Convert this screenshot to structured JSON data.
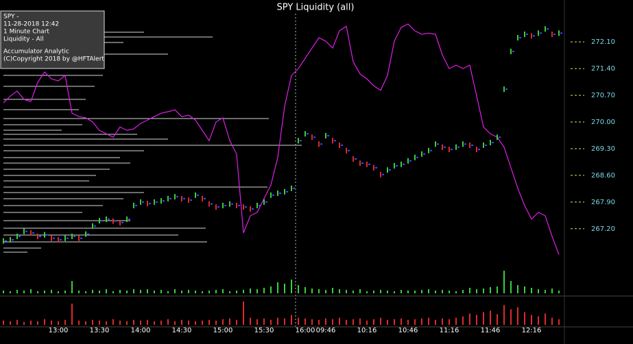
{
  "chart_data": {
    "type": "price-liquidity",
    "title": "SPY Liquidity (all)",
    "annotations": [
      "SPY -",
      "11-28-2018  12:42",
      "1 Minute Chart",
      "Liquidity - All",
      "Accumulator Analytic",
      "(C)Copyright 2018 by @HFTAlert"
    ],
    "categories": [
      null,
      null,
      null,
      null,
      null,
      null,
      null,
      null,
      "13:00",
      null,
      null,
      null,
      null,
      null,
      "13:30",
      null,
      null,
      null,
      null,
      null,
      "14:00",
      null,
      null,
      null,
      null,
      null,
      "14:30",
      null,
      null,
      null,
      null,
      null,
      "15:00",
      null,
      null,
      null,
      null,
      null,
      "15:30",
      null,
      null,
      null,
      null,
      null,
      "16:00",
      null,
      null,
      "09:46",
      null,
      null,
      null,
      null,
      null,
      "10:16",
      null,
      null,
      null,
      null,
      null,
      "10:46",
      null,
      null,
      null,
      null,
      null,
      "11:16",
      null,
      null,
      null,
      null,
      null,
      "11:46",
      null,
      null,
      null,
      null,
      null,
      "12:16",
      null,
      null,
      null,
      null
    ],
    "price_values": [
      266.88,
      266.91,
      267.0,
      267.13,
      267.09,
      267.0,
      267.04,
      266.95,
      266.91,
      266.95,
      267.0,
      266.95,
      267.06,
      267.27,
      267.41,
      267.45,
      267.4,
      267.36,
      267.45,
      267.81,
      267.9,
      267.86,
      267.9,
      267.93,
      267.99,
      268.04,
      267.99,
      267.95,
      268.08,
      267.99,
      267.85,
      267.77,
      267.81,
      267.85,
      267.81,
      267.77,
      267.72,
      267.81,
      267.9,
      268.08,
      268.13,
      268.17,
      268.26,
      269.51,
      269.69,
      269.6,
      269.42,
      269.64,
      269.51,
      269.39,
      269.25,
      269.03,
      268.92,
      268.89,
      268.8,
      268.62,
      268.74,
      268.85,
      268.89,
      268.98,
      269.07,
      269.16,
      269.25,
      269.42,
      269.34,
      269.28,
      269.34,
      269.42,
      269.39,
      269.28,
      269.39,
      269.46,
      269.6,
      270.86,
      271.85,
      272.21,
      272.3,
      272.26,
      272.33,
      272.44,
      272.3,
      272.33
    ],
    "liquidity_values": [
      270.5,
      270.68,
      270.81,
      270.59,
      270.54,
      271.04,
      271.31,
      271.13,
      271.08,
      271.22,
      270.23,
      270.14,
      270.11,
      270.0,
      269.78,
      269.69,
      269.6,
      269.87,
      269.78,
      269.82,
      269.96,
      270.05,
      270.14,
      270.23,
      270.27,
      270.32,
      270.14,
      270.18,
      270.05,
      269.78,
      269.51,
      270.0,
      270.11,
      269.51,
      269.16,
      267.09,
      267.54,
      267.63,
      267.99,
      268.35,
      269.07,
      270.41,
      271.22,
      271.4,
      271.67,
      271.94,
      272.21,
      272.12,
      271.94,
      272.39,
      272.51,
      271.58,
      271.26,
      271.13,
      270.95,
      270.83,
      271.22,
      272.12,
      272.48,
      272.57,
      272.39,
      272.3,
      272.33,
      272.3,
      271.76,
      271.4,
      271.49,
      271.4,
      271.49,
      270.68,
      269.87,
      269.69,
      269.6,
      269.34,
      268.8,
      268.26,
      267.81,
      267.45,
      267.63,
      267.54,
      267.0,
      266.52
    ],
    "volume_up": [
      4,
      3,
      5,
      4,
      6,
      3,
      4,
      5,
      3,
      4,
      18,
      4,
      3,
      5,
      4,
      6,
      3,
      5,
      4,
      6,
      5,
      6,
      4,
      5,
      3,
      6,
      4,
      5,
      4,
      3,
      4,
      5,
      6,
      3,
      4,
      5,
      7,
      6,
      8,
      10,
      16,
      14,
      20,
      12,
      9,
      7,
      6,
      5,
      8,
      6,
      5,
      4,
      6,
      3,
      4,
      5,
      4,
      3,
      5,
      4,
      4,
      5,
      6,
      4,
      5,
      4,
      3,
      5,
      8,
      6,
      7,
      9,
      10,
      33,
      18,
      12,
      10,
      8,
      6,
      5,
      7,
      4
    ],
    "volume_down": [
      6,
      5,
      7,
      4,
      6,
      5,
      8,
      6,
      5,
      7,
      30,
      6,
      5,
      7,
      6,
      5,
      8,
      6,
      5,
      7,
      6,
      7,
      5,
      6,
      8,
      5,
      7,
      6,
      5,
      6,
      7,
      6,
      8,
      9,
      7,
      33,
      10,
      8,
      9,
      7,
      10,
      9,
      14,
      10,
      9,
      8,
      7,
      9,
      8,
      10,
      7,
      8,
      9,
      6,
      8,
      10,
      7,
      8,
      9,
      7,
      8,
      9,
      10,
      7,
      9,
      8,
      10,
      12,
      16,
      14,
      18,
      20,
      15,
      28,
      22,
      25,
      18,
      14,
      12,
      16,
      10,
      8
    ],
    "ylim": [
      266.1,
      272.84
    ],
    "yticks": [
      {
        "value": 272.1,
        "label": "272.10"
      },
      {
        "value": 271.4,
        "label": "271.40"
      },
      {
        "value": 270.7,
        "label": "270.70"
      },
      {
        "value": 270.0,
        "label": "270.00"
      },
      {
        "value": 269.3,
        "label": "269.30"
      },
      {
        "value": 268.6,
        "label": "268.60"
      },
      {
        "value": 267.9,
        "label": "267.90"
      },
      {
        "value": 267.2,
        "label": "267.20"
      }
    ],
    "liquidity_color": "#e020e8",
    "up_color": "#3ad13a",
    "down_color": "#e02a2a",
    "close_color": "#3a4cff",
    "tick_label_color": "#7fd8e8",
    "tick_dash_color": "#e8e060",
    "volume_down_color": "#e02a2a",
    "volume_up_color": "#3ad13a"
  }
}
